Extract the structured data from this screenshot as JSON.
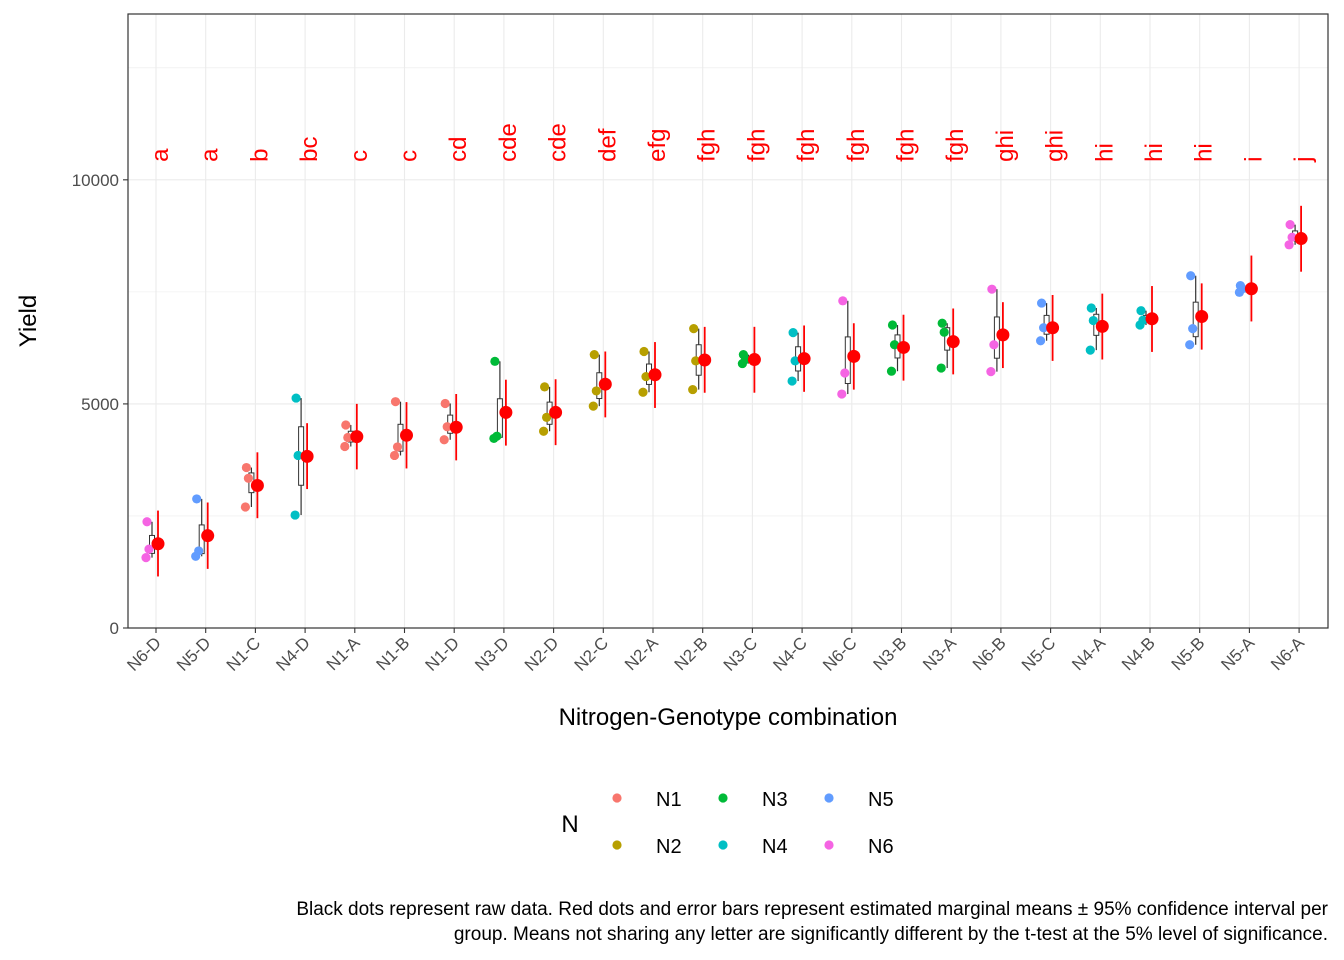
{
  "chart_data": {
    "type": "scatter",
    "xlabel": "Nitrogen-Genotype combination",
    "ylabel": "Yield",
    "ylim": [
      0,
      13700
    ],
    "yticks": [
      0,
      5000,
      10000
    ],
    "grid": true,
    "legend": {
      "title": "N",
      "position": "bottom",
      "entries": [
        {
          "name": "N1",
          "color": "#F8766D"
        },
        {
          "name": "N2",
          "color": "#B79F00"
        },
        {
          "name": "N3",
          "color": "#00BA38"
        },
        {
          "name": "N4",
          "color": "#00BFC4"
        },
        {
          "name": "N5",
          "color": "#619CFF"
        },
        {
          "name": "N6",
          "color": "#F564E3"
        }
      ]
    },
    "caption": [
      "Black dots represent raw data. Red dots and error bars represent estimated marginal means ± 95% confidence interval per",
      "group. Means not sharing any letter are significantly different by the t-test at the 5% level of significance."
    ],
    "emmean_color": "#FF0000",
    "groups": [
      {
        "label": "N6-D",
        "n": "N6",
        "letter": "a",
        "mean": 1880,
        "lower": 1150,
        "upper": 2620,
        "raw": [
          2370,
          1760,
          1570
        ]
      },
      {
        "label": "N5-D",
        "n": "N5",
        "letter": "a",
        "mean": 2060,
        "lower": 1320,
        "upper": 2800,
        "raw": [
          2880,
          1720,
          1600
        ]
      },
      {
        "label": "N1-C",
        "n": "N1",
        "letter": "b",
        "mean": 3180,
        "lower": 2450,
        "upper": 3920,
        "raw": [
          3580,
          3340,
          2700
        ]
      },
      {
        "label": "N4-D",
        "n": "N4",
        "letter": "bc",
        "mean": 3830,
        "lower": 3100,
        "upper": 4570,
        "raw": [
          5130,
          3850,
          2520
        ]
      },
      {
        "label": "N1-A",
        "n": "N1",
        "letter": "c",
        "mean": 4270,
        "lower": 3540,
        "upper": 5000,
        "raw": [
          4530,
          4250,
          4050
        ]
      },
      {
        "label": "N1-B",
        "n": "N1",
        "letter": "c",
        "mean": 4300,
        "lower": 3560,
        "upper": 5040,
        "raw": [
          5050,
          4040,
          3850
        ]
      },
      {
        "label": "N1-D",
        "n": "N1",
        "letter": "cd",
        "mean": 4480,
        "lower": 3740,
        "upper": 5220,
        "raw": [
          5010,
          4490,
          4200
        ]
      },
      {
        "label": "N3-D",
        "n": "N3",
        "letter": "cde",
        "mean": 4810,
        "lower": 4070,
        "upper": 5540,
        "raw": [
          5950,
          4280,
          4230
        ]
      },
      {
        "label": "N2-D",
        "n": "N2",
        "letter": "cde",
        "mean": 4810,
        "lower": 4080,
        "upper": 5550,
        "raw": [
          5380,
          4700,
          4390
        ]
      },
      {
        "label": "N2-C",
        "n": "N2",
        "letter": "def",
        "mean": 5440,
        "lower": 4700,
        "upper": 6170,
        "raw": [
          6100,
          5290,
          4950
        ]
      },
      {
        "label": "N2-A",
        "n": "N2",
        "letter": "efg",
        "mean": 5650,
        "lower": 4910,
        "upper": 6380,
        "raw": [
          6170,
          5610,
          5260
        ]
      },
      {
        "label": "N2-B",
        "n": "N2",
        "letter": "fgh",
        "mean": 5980,
        "lower": 5250,
        "upper": 6720,
        "raw": [
          6680,
          5960,
          5320
        ]
      },
      {
        "label": "N3-C",
        "n": "N3",
        "letter": "fgh",
        "mean": 5990,
        "lower": 5250,
        "upper": 6720,
        "raw": [
          6100,
          5990,
          5900
        ]
      },
      {
        "label": "N4-C",
        "n": "N4",
        "letter": "fgh",
        "mean": 6010,
        "lower": 5270,
        "upper": 6750,
        "raw": [
          6590,
          5960,
          5510
        ]
      },
      {
        "label": "N6-C",
        "n": "N6",
        "letter": "fgh",
        "mean": 6060,
        "lower": 5320,
        "upper": 6800,
        "raw": [
          7300,
          5690,
          5220
        ]
      },
      {
        "label": "N3-B",
        "n": "N3",
        "letter": "fgh",
        "mean": 6260,
        "lower": 5520,
        "upper": 6990,
        "raw": [
          6760,
          6320,
          5730
        ]
      },
      {
        "label": "N3-A",
        "n": "N3",
        "letter": "fgh",
        "mean": 6390,
        "lower": 5660,
        "upper": 7130,
        "raw": [
          6800,
          6600,
          5800
        ]
      },
      {
        "label": "N6-B",
        "n": "N6",
        "letter": "ghi",
        "mean": 6540,
        "lower": 5800,
        "upper": 7270,
        "raw": [
          7560,
          6320,
          5720
        ]
      },
      {
        "label": "N5-C",
        "n": "N5",
        "letter": "ghi",
        "mean": 6700,
        "lower": 5960,
        "upper": 7430,
        "raw": [
          7250,
          6700,
          6410
        ]
      },
      {
        "label": "N4-A",
        "n": "N4",
        "letter": "hi",
        "mean": 6730,
        "lower": 5990,
        "upper": 7460,
        "raw": [
          7140,
          6860,
          6200
        ]
      },
      {
        "label": "N4-B",
        "n": "N4",
        "letter": "hi",
        "mean": 6900,
        "lower": 6160,
        "upper": 7630,
        "raw": [
          7080,
          6870,
          6760
        ]
      },
      {
        "label": "N5-B",
        "n": "N5",
        "letter": "hi",
        "mean": 6950,
        "lower": 6210,
        "upper": 7690,
        "raw": [
          7860,
          6680,
          6320
        ]
      },
      {
        "label": "N5-A",
        "n": "N5",
        "letter": "i",
        "mean": 7570,
        "lower": 6840,
        "upper": 8310,
        "raw": [
          7640,
          7570,
          7490
        ]
      },
      {
        "label": "N6-A",
        "n": "N6",
        "letter": "j",
        "mean": 8690,
        "lower": 7950,
        "upper": 9420,
        "raw": [
          9000,
          8720,
          8550
        ]
      }
    ]
  }
}
